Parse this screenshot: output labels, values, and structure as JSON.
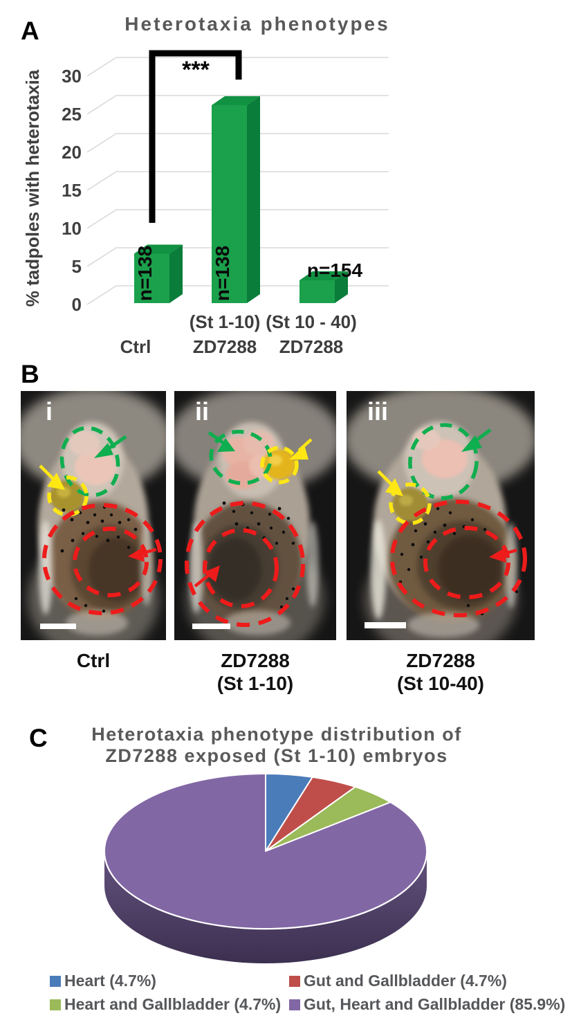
{
  "panel_a": {
    "label": "A",
    "title": "Heterotaxia phenotypes"
  },
  "chart_data": [
    {
      "type": "bar",
      "title": "Heterotaxia phenotypes",
      "ylabel": "% tadpoles with heterotaxia",
      "yticks": [
        0,
        5,
        10,
        15,
        20,
        25,
        30
      ],
      "ylim": [
        0,
        32
      ],
      "grid": true,
      "categories": [
        "Ctrl",
        "ZD7288 (St 1-10)",
        "ZD7288 (St 10-40)"
      ],
      "x_tick_lines": [
        [
          "",
          "Ctrl"
        ],
        [
          "(St 1-10)",
          "ZD7288"
        ],
        [
          "(St 10 - 40)",
          "ZD7288"
        ]
      ],
      "values": [
        6.5,
        26,
        3
      ],
      "bar_labels": [
        "n=138",
        "n=138",
        "n=154"
      ],
      "bar_color_front": "#1BA04C",
      "bar_color_side": "#0A7D3A",
      "bar_color_top": "#119142",
      "significance": {
        "from": "Ctrl",
        "to": "ZD7288 (St 1-10)",
        "label": "***"
      }
    },
    {
      "type": "pie",
      "title": "Heterotaxia phenotype distribution of ZD7288 exposed (St 1-10) embryos",
      "labels": [
        "Heart",
        "Gut and Gallbladder",
        "Heart and Gallbladder",
        "Gut, Heart and Gallbladder"
      ],
      "values": [
        4.7,
        4.7,
        4.7,
        85.9
      ],
      "colors": [
        "#4b7cba",
        "#bf4e4a",
        "#9bba59",
        "#8267a5"
      ],
      "side_color_top": "#63527e",
      "side_color_bottom": "#3c3050",
      "start_angle_deg": 0,
      "direction": "clockwise",
      "legend_position": "bottom"
    }
  ],
  "panel_b": {
    "label": "B",
    "annotation_colors": {
      "heart_outline": "#0fae4f",
      "gallbladder_outline": "#ffe714",
      "gut_outline": "#ee1b1b"
    },
    "images": [
      {
        "tag": "i",
        "caption_line1": "Ctrl",
        "caption_line2": ""
      },
      {
        "tag": "ii",
        "caption_line1": "ZD7288",
        "caption_line2": "(St 1-10)"
      },
      {
        "tag": "iii",
        "caption_line1": "ZD7288",
        "caption_line2": "(St 10-40)"
      }
    ]
  },
  "panel_c": {
    "label": "C",
    "title_line1": "Heterotaxia phenotype distribution of",
    "title_line2": "ZD7288 exposed (St 1-10) embryos",
    "legend": [
      {
        "label": "Heart (4.7%)",
        "color": "#4b7cba"
      },
      {
        "label": "Gut and Gallbladder (4.7%)",
        "color": "#bf4e4a"
      },
      {
        "label": "Heart and Gallbladder (4.7%)",
        "color": "#9bba59"
      },
      {
        "label": "Gut, Heart and Gallbladder (85.9%)",
        "color": "#8267a5"
      }
    ]
  }
}
